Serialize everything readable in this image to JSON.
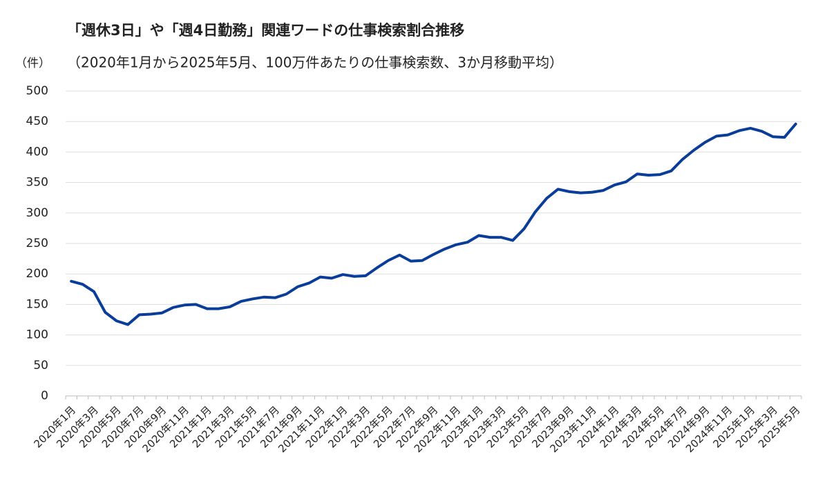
{
  "chart_data": {
    "type": "line",
    "title": "「週休3日」や「週4日勤務」関連ワードの仕事検索割合推移",
    "subtitle": "（2020年1月から2025年5月、100万件あたりの仕事検索数、3か月移動平均）",
    "y_label": "（件）",
    "categories": [
      "2020年1月",
      null,
      "2020年3月",
      null,
      "2020年5月",
      null,
      "2020年7月",
      null,
      "2020年9月",
      null,
      "2020年11月",
      null,
      "2021年1月",
      null,
      "2021年3月",
      null,
      "2021年5月",
      null,
      "2021年7月",
      null,
      "2021年9月",
      null,
      "2021年11月",
      null,
      "2022年1月",
      null,
      "2022年3月",
      null,
      "2022年5月",
      null,
      "2022年7月",
      null,
      "2022年9月",
      null,
      "2022年11月",
      null,
      "2023年1月",
      null,
      "2023年3月",
      null,
      "2023年5月",
      null,
      "2023年7月",
      null,
      "2023年9月",
      null,
      "2023年11月",
      null,
      "2024年1月",
      null,
      "2024年3月",
      null,
      "2024年5月",
      null,
      "2024年7月",
      null,
      "2024年9月",
      null,
      "2024年11月",
      null,
      "2025年1月",
      null,
      "2025年3月",
      null,
      "2025年5月"
    ],
    "series": [
      {
        "color": "#0a3d99",
        "values": [
          188,
          183,
          171,
          137,
          123,
          117,
          133,
          134,
          136,
          145,
          149,
          150,
          143,
          143,
          146,
          155,
          159,
          162,
          161,
          167,
          179,
          185,
          195,
          193,
          199,
          196,
          197,
          210,
          222,
          231,
          221,
          222,
          232,
          241,
          248,
          252,
          263,
          260,
          260,
          255,
          274,
          302,
          324,
          339,
          335,
          333,
          334,
          337,
          346,
          351,
          364,
          362,
          363,
          369,
          388,
          403,
          416,
          426,
          428,
          435,
          439,
          434,
          425,
          424,
          446
        ]
      }
    ],
    "ylim": [
      0,
      500
    ],
    "yticks": [
      0,
      50,
      100,
      150,
      200,
      250,
      300,
      350,
      400,
      450,
      500
    ],
    "grid": true
  }
}
